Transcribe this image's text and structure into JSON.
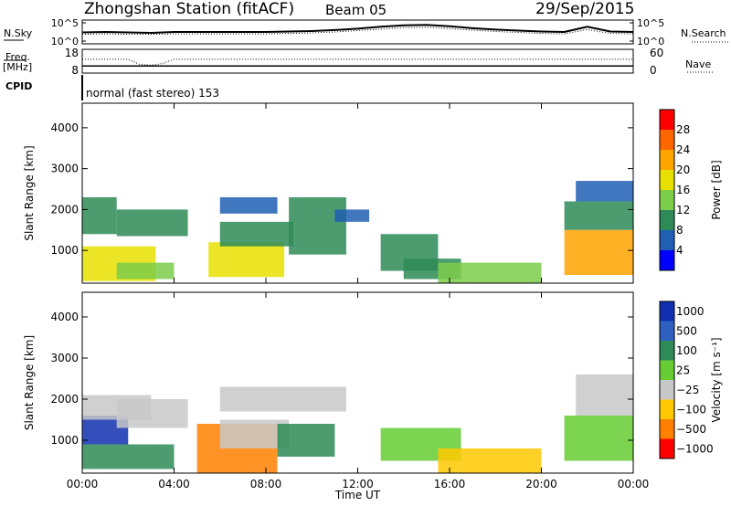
{
  "header": {
    "station": "Zhongshan Station (fitACF)",
    "beam": "Beam 05",
    "date": "29/Sep/2015"
  },
  "side_labels": {
    "nsky": "N.Sky",
    "freq": "Freq.",
    "freq_unit": "[MHz]",
    "cpid": "CPID",
    "nsearch": "N.Search",
    "nave": "Nave"
  },
  "cpid_text": "normal (fast stereo) 153",
  "colors": {
    "power_scale": [
      "#0000ff",
      "#1f5fb4",
      "#2e8b57",
      "#7ccd4a",
      "#e8e000",
      "#ffa500",
      "#ff6600",
      "#ff0000"
    ],
    "velocity_scale": [
      "#1030b0",
      "#3060c0",
      "#2e8b57",
      "#66cc33",
      "#c8c8c8",
      "#ffc800",
      "#ff8000",
      "#ff0000"
    ]
  },
  "chart_data": [
    {
      "type": "line",
      "name": "noise-panel",
      "left_axis_label": "N.Sky",
      "right_axis_label": "N.Search",
      "left_ticks": [
        "10^5",
        "10^0"
      ],
      "right_ticks": [
        "10^5",
        "10^0"
      ],
      "x": [
        0,
        1,
        2,
        3,
        4,
        5,
        6,
        7,
        8,
        9,
        10,
        11,
        12,
        13,
        14,
        15,
        16,
        17,
        18,
        19,
        20,
        21,
        22,
        23,
        24
      ],
      "series": [
        {
          "name": "N.Sky",
          "values": [
            2.4,
            2.5,
            2.4,
            2.3,
            2.5,
            2.5,
            2.5,
            2.5,
            2.5,
            2.6,
            2.7,
            2.9,
            3.2,
            3.6,
            3.9,
            4.0,
            3.7,
            3.3,
            3.0,
            2.8,
            2.6,
            2.5,
            3.6,
            2.6,
            2.5
          ]
        },
        {
          "name": "N.Search",
          "values": [
            2.0,
            2.1,
            2.0,
            2.0,
            2.1,
            2.1,
            2.1,
            2.1,
            2.1,
            2.2,
            2.3,
            2.5,
            2.8,
            3.1,
            3.4,
            3.5,
            3.2,
            2.9,
            2.6,
            2.4,
            2.2,
            2.1,
            3.0,
            2.2,
            2.1
          ]
        }
      ]
    },
    {
      "type": "line",
      "name": "freq-panel",
      "left_axis_label": "Freq. [MHz]",
      "right_axis_label": "Nave",
      "left_ticks": [
        "18",
        "8"
      ],
      "right_ticks": [
        "60",
        "0"
      ],
      "x": [
        0,
        2,
        2.5,
        3,
        3.5,
        4,
        6,
        8,
        10,
        12,
        14,
        16,
        18,
        20,
        22,
        24
      ],
      "series": [
        {
          "name": "Freq",
          "values": [
            11,
            11,
            11,
            11,
            11,
            11,
            11,
            11,
            11,
            11,
            11,
            11,
            11,
            11,
            11,
            11
          ]
        },
        {
          "name": "Nave",
          "values": [
            35,
            35,
            22,
            20,
            24,
            35,
            35,
            35,
            35,
            35,
            35,
            35,
            35,
            35,
            35,
            35
          ]
        }
      ]
    },
    {
      "type": "heatmap",
      "name": "power-panel",
      "ylabel": "Slant Range [km]",
      "ylim": [
        200,
        4600
      ],
      "yticks": [
        "1000",
        "2000",
        "3000",
        "4000"
      ],
      "xlim": [
        0,
        24
      ],
      "colorbar_label": "Power [dB]",
      "colorbar_ticks": [
        "4",
        "8",
        "12",
        "16",
        "20",
        "24",
        "28"
      ],
      "clim": [
        0,
        32
      ],
      "patches": [
        {
          "t0": 0,
          "t1": 3.2,
          "r0": 250,
          "r1": 1100,
          "v": 17
        },
        {
          "t0": 0,
          "t1": 1.5,
          "r0": 1400,
          "r1": 2300,
          "v": 9
        },
        {
          "t0": 1.5,
          "t1": 4.6,
          "r0": 1350,
          "r1": 2000,
          "v": 9
        },
        {
          "t0": 1.5,
          "t1": 4.0,
          "r0": 300,
          "r1": 700,
          "v": 15
        },
        {
          "t0": 5.5,
          "t1": 8.8,
          "r0": 350,
          "r1": 1200,
          "v": 16
        },
        {
          "t0": 6.0,
          "t1": 9.2,
          "r0": 1100,
          "r1": 1700,
          "v": 8
        },
        {
          "t0": 6.0,
          "t1": 8.5,
          "r0": 1900,
          "r1": 2300,
          "v": 7
        },
        {
          "t0": 9.0,
          "t1": 11.5,
          "r0": 900,
          "r1": 2300,
          "v": 8
        },
        {
          "t0": 11.0,
          "t1": 12.5,
          "r0": 1700,
          "r1": 2000,
          "v": 7
        },
        {
          "t0": 13.0,
          "t1": 15.5,
          "r0": 500,
          "r1": 1400,
          "v": 10
        },
        {
          "t0": 14.0,
          "t1": 16.5,
          "r0": 300,
          "r1": 800,
          "v": 8
        },
        {
          "t0": 15.5,
          "t1": 20.0,
          "r0": 200,
          "r1": 700,
          "v": 13
        },
        {
          "t0": 21.0,
          "t1": 24.0,
          "r0": 400,
          "r1": 1500,
          "v": 22
        },
        {
          "t0": 21.0,
          "t1": 24.0,
          "r0": 1500,
          "r1": 2200,
          "v": 10
        },
        {
          "t0": 21.5,
          "t1": 24.0,
          "r0": 2200,
          "r1": 2700,
          "v": 7
        }
      ]
    },
    {
      "type": "heatmap",
      "name": "velocity-panel",
      "ylabel": "Slant Range [km]",
      "ylim": [
        200,
        4600
      ],
      "yticks": [
        "1000",
        "2000",
        "3000",
        "4000"
      ],
      "xlim": [
        0,
        24
      ],
      "xticks": [
        "00:00",
        "04:00",
        "08:00",
        "12:00",
        "16:00",
        "20:00",
        "00:00"
      ],
      "xlabel": "Time UT",
      "colorbar_label": "Velocity [m s⁻¹]",
      "colorbar_ticks": [
        "1000",
        "500",
        "100",
        "25",
        "−25",
        "−100",
        "−500",
        "−1000"
      ],
      "clim": [
        -1000,
        1000
      ],
      "patches": [
        {
          "t0": 0,
          "t1": 4.0,
          "r0": 300,
          "r1": 900,
          "v": 300
        },
        {
          "t0": 0,
          "t1": 2.0,
          "r0": 900,
          "r1": 1600,
          "v": 800
        },
        {
          "t0": 0,
          "t1": 3.0,
          "r0": 1500,
          "r1": 2100,
          "v": 0
        },
        {
          "t0": 1.5,
          "t1": 4.6,
          "r0": 1300,
          "r1": 2000,
          "v": -200
        },
        {
          "t0": 5.0,
          "t1": 8.5,
          "r0": 200,
          "r1": 1400,
          "v": -600
        },
        {
          "t0": 6.0,
          "t1": 9.0,
          "r0": 800,
          "r1": 1500,
          "v": -150
        },
        {
          "t0": 6.0,
          "t1": 11.5,
          "r0": 1700,
          "r1": 2300,
          "v": 0
        },
        {
          "t0": 8.5,
          "t1": 11.0,
          "r0": 600,
          "r1": 1400,
          "v": 300
        },
        {
          "t0": 13.0,
          "t1": 16.5,
          "r0": 500,
          "r1": 1300,
          "v": 200
        },
        {
          "t0": 15.5,
          "t1": 20.0,
          "r0": 200,
          "r1": 800,
          "v": -300
        },
        {
          "t0": 21.0,
          "t1": 24.0,
          "r0": 500,
          "r1": 1600,
          "v": 250
        },
        {
          "t0": 21.5,
          "t1": 24.0,
          "r0": 1600,
          "r1": 2600,
          "v": 0
        }
      ]
    }
  ]
}
